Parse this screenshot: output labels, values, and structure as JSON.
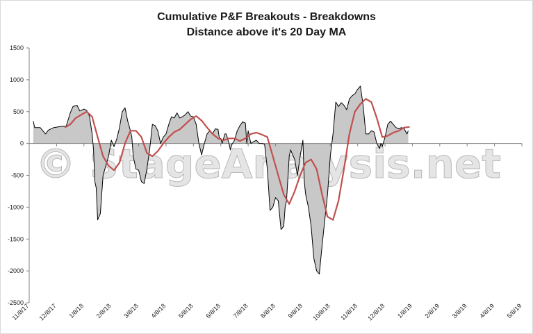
{
  "chart_data": {
    "type": "area",
    "title": "Cumulative P&F Breakouts - Breakdowns",
    "subtitle": "Distance above it's 20 Day MA",
    "watermark": "© StageAnalysis.net",
    "ylim": [
      -2500,
      1500
    ],
    "y_ticks": [
      1500,
      1000,
      500,
      0,
      -500,
      -1000,
      -1500,
      -2000,
      -2500
    ],
    "x_ticks": [
      "11/8/17",
      "12/8/17",
      "1/8/18",
      "2/8/18",
      "3/8/18",
      "4/8/18",
      "5/8/18",
      "6/8/18",
      "7/8/18",
      "8/8/18",
      "9/8/18",
      "10/8/18",
      "11/8/18",
      "12/8/18",
      "1/8/19",
      "2/8/19",
      "3/8/19",
      "4/8/19",
      "5/8/19"
    ],
    "colors": {
      "area_fill": "#c8c8c8",
      "distance_line": "#000000",
      "ma_line": "#c0504d",
      "axis": "#808080"
    },
    "series": [
      {
        "name": "Distance above 20 Day MA",
        "points": [
          [
            0.15,
            350
          ],
          [
            0.2,
            250
          ],
          [
            0.4,
            250
          ],
          [
            0.5,
            200
          ],
          [
            0.6,
            150
          ],
          [
            0.7,
            210
          ],
          [
            0.9,
            250
          ],
          [
            1.2,
            270
          ],
          [
            1.35,
            270
          ],
          [
            1.5,
            480
          ],
          [
            1.6,
            580
          ],
          [
            1.75,
            600
          ],
          [
            1.85,
            510
          ],
          [
            2.0,
            540
          ],
          [
            2.1,
            520
          ],
          [
            2.2,
            430
          ],
          [
            2.3,
            150
          ],
          [
            2.35,
            -100
          ],
          [
            2.4,
            -600
          ],
          [
            2.45,
            -700
          ],
          [
            2.5,
            -1200
          ],
          [
            2.6,
            -1100
          ],
          [
            2.7,
            -500
          ],
          [
            2.8,
            -350
          ],
          [
            2.9,
            -200
          ],
          [
            3.0,
            50
          ],
          [
            3.1,
            -50
          ],
          [
            3.2,
            70
          ],
          [
            3.3,
            250
          ],
          [
            3.4,
            500
          ],
          [
            3.5,
            560
          ],
          [
            3.6,
            350
          ],
          [
            3.7,
            200
          ],
          [
            3.75,
            100
          ],
          [
            3.8,
            -200
          ],
          [
            3.9,
            -400
          ],
          [
            4.0,
            -420
          ],
          [
            4.1,
            -600
          ],
          [
            4.2,
            -630
          ],
          [
            4.3,
            -400
          ],
          [
            4.4,
            -100
          ],
          [
            4.5,
            300
          ],
          [
            4.6,
            280
          ],
          [
            4.7,
            200
          ],
          [
            4.8,
            0
          ],
          [
            4.9,
            100
          ],
          [
            5.0,
            150
          ],
          [
            5.1,
            300
          ],
          [
            5.2,
            420
          ],
          [
            5.3,
            400
          ],
          [
            5.4,
            480
          ],
          [
            5.5,
            400
          ],
          [
            5.6,
            420
          ],
          [
            5.7,
            450
          ],
          [
            5.8,
            500
          ],
          [
            5.9,
            430
          ],
          [
            6.0,
            420
          ],
          [
            6.1,
            300
          ],
          [
            6.2,
            0
          ],
          [
            6.3,
            -180
          ],
          [
            6.4,
            0
          ],
          [
            6.5,
            150
          ],
          [
            6.6,
            200
          ],
          [
            6.7,
            150
          ],
          [
            6.8,
            230
          ],
          [
            6.9,
            220
          ],
          [
            6.95,
            70
          ],
          [
            7.0,
            80
          ],
          [
            7.05,
            0
          ],
          [
            7.15,
            150
          ],
          [
            7.2,
            150
          ],
          [
            7.3,
            0
          ],
          [
            7.35,
            -100
          ],
          [
            7.4,
            -20
          ],
          [
            7.5,
            50
          ],
          [
            7.6,
            200
          ],
          [
            7.7,
            280
          ],
          [
            7.8,
            340
          ],
          [
            7.9,
            320
          ],
          [
            7.95,
            0
          ],
          [
            8.0,
            200
          ],
          [
            8.1,
            0
          ],
          [
            8.2,
            30
          ],
          [
            8.3,
            50
          ],
          [
            8.4,
            0
          ],
          [
            8.5,
            0
          ],
          [
            8.6,
            -10
          ],
          [
            8.7,
            -400
          ],
          [
            8.8,
            -1050
          ],
          [
            8.9,
            -1000
          ],
          [
            9.0,
            -850
          ],
          [
            9.1,
            -900
          ],
          [
            9.2,
            -1350
          ],
          [
            9.3,
            -1300
          ],
          [
            9.35,
            -1000
          ],
          [
            9.4,
            -900
          ],
          [
            9.5,
            -200
          ],
          [
            9.55,
            -100
          ],
          [
            9.6,
            -150
          ],
          [
            9.7,
            -250
          ],
          [
            9.8,
            -500
          ],
          [
            9.9,
            -200
          ],
          [
            10.0,
            50
          ],
          [
            10.05,
            -600
          ],
          [
            10.1,
            -800
          ],
          [
            10.2,
            -1000
          ],
          [
            10.3,
            -1300
          ],
          [
            10.4,
            -1800
          ],
          [
            10.5,
            -2000
          ],
          [
            10.6,
            -2050
          ],
          [
            10.7,
            -1600
          ],
          [
            10.8,
            -1200
          ],
          [
            10.9,
            -800
          ],
          [
            11.0,
            -200
          ],
          [
            11.1,
            150
          ],
          [
            11.2,
            650
          ],
          [
            11.3,
            580
          ],
          [
            11.4,
            640
          ],
          [
            11.5,
            600
          ],
          [
            11.6,
            530
          ],
          [
            11.7,
            700
          ],
          [
            11.8,
            750
          ],
          [
            11.9,
            780
          ],
          [
            12.0,
            850
          ],
          [
            12.1,
            900
          ],
          [
            12.2,
            600
          ],
          [
            12.3,
            150
          ],
          [
            12.4,
            150
          ],
          [
            12.5,
            200
          ],
          [
            12.6,
            180
          ],
          [
            12.7,
            0
          ],
          [
            12.8,
            -80
          ],
          [
            12.85,
            0
          ],
          [
            12.9,
            -50
          ],
          [
            13.0,
            100
          ],
          [
            13.1,
            300
          ],
          [
            13.2,
            350
          ],
          [
            13.3,
            300
          ],
          [
            13.4,
            250
          ],
          [
            13.5,
            230
          ],
          [
            13.6,
            250
          ],
          [
            13.7,
            230
          ],
          [
            13.8,
            150
          ],
          [
            13.85,
            200
          ]
        ]
      },
      {
        "name": "20 Day MA",
        "points": [
          [
            1.3,
            250
          ],
          [
            1.5,
            300
          ],
          [
            1.7,
            400
          ],
          [
            1.9,
            450
          ],
          [
            2.1,
            500
          ],
          [
            2.3,
            420
          ],
          [
            2.5,
            100
          ],
          [
            2.7,
            -200
          ],
          [
            2.9,
            -350
          ],
          [
            3.1,
            -420
          ],
          [
            3.3,
            -300
          ],
          [
            3.5,
            0
          ],
          [
            3.7,
            200
          ],
          [
            3.9,
            200
          ],
          [
            4.1,
            100
          ],
          [
            4.3,
            -150
          ],
          [
            4.5,
            -200
          ],
          [
            4.7,
            -120
          ],
          [
            4.9,
            0
          ],
          [
            5.1,
            100
          ],
          [
            5.3,
            180
          ],
          [
            5.5,
            220
          ],
          [
            5.7,
            300
          ],
          [
            5.9,
            380
          ],
          [
            6.1,
            430
          ],
          [
            6.3,
            360
          ],
          [
            6.5,
            250
          ],
          [
            6.7,
            150
          ],
          [
            6.9,
            80
          ],
          [
            7.1,
            50
          ],
          [
            7.3,
            80
          ],
          [
            7.5,
            80
          ],
          [
            7.7,
            40
          ],
          [
            7.9,
            80
          ],
          [
            8.1,
            150
          ],
          [
            8.3,
            170
          ],
          [
            8.5,
            140
          ],
          [
            8.7,
            100
          ],
          [
            8.9,
            -200
          ],
          [
            9.1,
            -500
          ],
          [
            9.3,
            -800
          ],
          [
            9.5,
            -950
          ],
          [
            9.7,
            -750
          ],
          [
            9.9,
            -500
          ],
          [
            10.1,
            -300
          ],
          [
            10.3,
            -250
          ],
          [
            10.5,
            -400
          ],
          [
            10.7,
            -800
          ],
          [
            10.9,
            -1150
          ],
          [
            11.1,
            -1200
          ],
          [
            11.3,
            -900
          ],
          [
            11.5,
            -400
          ],
          [
            11.7,
            150
          ],
          [
            11.9,
            500
          ],
          [
            12.1,
            620
          ],
          [
            12.3,
            700
          ],
          [
            12.5,
            650
          ],
          [
            12.7,
            400
          ],
          [
            12.9,
            100
          ],
          [
            13.1,
            120
          ],
          [
            13.3,
            170
          ],
          [
            13.5,
            200
          ],
          [
            13.7,
            250
          ],
          [
            13.9,
            260
          ]
        ]
      }
    ]
  }
}
